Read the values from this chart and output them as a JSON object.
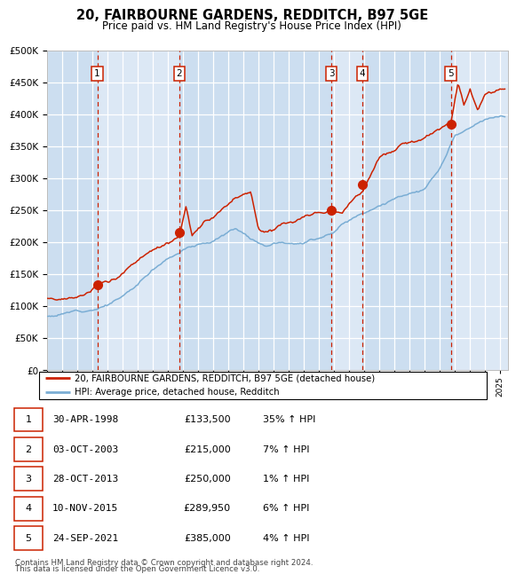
{
  "title": "20, FAIRBOURNE GARDENS, REDDITCH, B97 5GE",
  "subtitle": "Price paid vs. HM Land Registry's House Price Index (HPI)",
  "xlim": [
    1995.0,
    2025.5
  ],
  "ylim": [
    0,
    500000
  ],
  "yticks": [
    0,
    50000,
    100000,
    150000,
    200000,
    250000,
    300000,
    350000,
    400000,
    450000,
    500000
  ],
  "sales": [
    {
      "label": "1",
      "date_num": 1998.33,
      "price": 133500,
      "date_str": "30-APR-1998",
      "price_str": "£133,500",
      "hpi_str": "35% ↑ HPI"
    },
    {
      "label": "2",
      "date_num": 2003.75,
      "price": 215000,
      "date_str": "03-OCT-2003",
      "price_str": "£215,000",
      "hpi_str": "7% ↑ HPI"
    },
    {
      "label": "3",
      "date_num": 2013.83,
      "price": 250000,
      "date_str": "28-OCT-2013",
      "price_str": "£250,000",
      "hpi_str": "1% ↑ HPI"
    },
    {
      "label": "4",
      "date_num": 2015.87,
      "price": 289950,
      "date_str": "10-NOV-2015",
      "price_str": "£289,950",
      "hpi_str": "6% ↑ HPI"
    },
    {
      "label": "5",
      "date_num": 2021.73,
      "price": 385000,
      "date_str": "24-SEP-2021",
      "price_str": "£385,000",
      "hpi_str": "4% ↑ HPI"
    }
  ],
  "plot_bg_color": "#dce8f5",
  "grid_color": "#ffffff",
  "hpi_line_color": "#7aadd4",
  "price_line_color": "#cc2200",
  "sale_dot_color": "#cc2200",
  "vline_color": "#cc2200",
  "label_box_color": "#cc2200",
  "shade_color": "#c2d8ed",
  "legend_line1": "20, FAIRBOURNE GARDENS, REDDITCH, B97 5GE (detached house)",
  "legend_line2": "HPI: Average price, detached house, Redditch",
  "footer_line1": "Contains HM Land Registry data © Crown copyright and database right 2024.",
  "footer_line2": "This data is licensed under the Open Government Licence v3.0."
}
